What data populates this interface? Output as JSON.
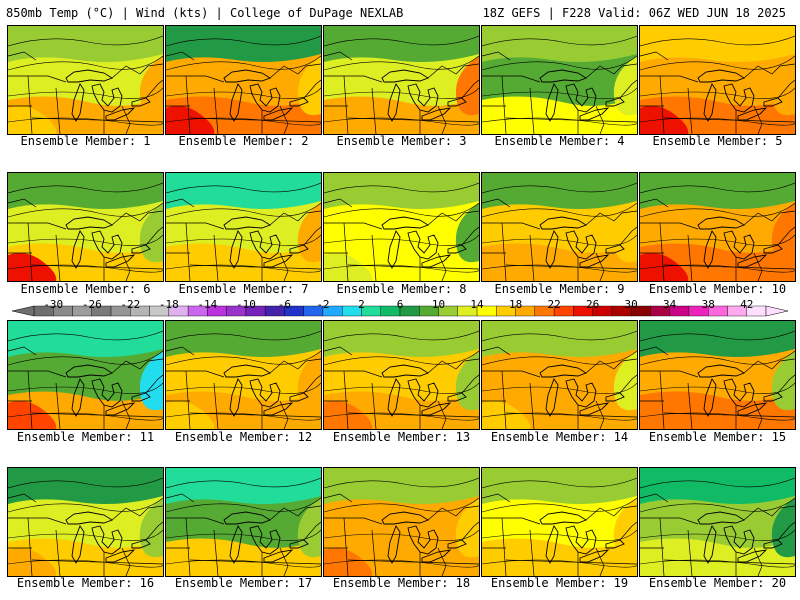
{
  "header": {
    "title_left": "850mb Temp (°C) | Wind (kts) | College of DuPage NEXLAB",
    "title_right": "18Z GEFS | F228 Valid: 06Z WED JUN 18 2025"
  },
  "colorbar": {
    "tick_labels": [
      "-30",
      "-26",
      "-22",
      "-18",
      "-14",
      "-10",
      "-6",
      "-2",
      "2",
      "6",
      "10",
      "14",
      "18",
      "22",
      "26",
      "30",
      "34",
      "38",
      "42"
    ],
    "bins": [
      {
        "from": -32,
        "to": -30,
        "color": "#6f6f6f"
      },
      {
        "from": -30,
        "to": -28,
        "color": "#8a8a8a"
      },
      {
        "from": -28,
        "to": -26,
        "color": "#9c9c9c"
      },
      {
        "from": -26,
        "to": -24,
        "color": "#7a7a7a"
      },
      {
        "from": -24,
        "to": -22,
        "color": "#969696"
      },
      {
        "from": -22,
        "to": -20,
        "color": "#b4b4b4"
      },
      {
        "from": -20,
        "to": -18,
        "color": "#c8c8c8"
      },
      {
        "from": -18,
        "to": -16,
        "color": "#e0b0f0"
      },
      {
        "from": -16,
        "to": -14,
        "color": "#cc66ee"
      },
      {
        "from": -14,
        "to": -12,
        "color": "#bb33dd"
      },
      {
        "from": -12,
        "to": -10,
        "color": "#9933cc"
      },
      {
        "from": -10,
        "to": -8,
        "color": "#7722bb"
      },
      {
        "from": -8,
        "to": -6,
        "color": "#4422aa"
      },
      {
        "from": -6,
        "to": -4,
        "color": "#2233cc"
      },
      {
        "from": -4,
        "to": -2,
        "color": "#2266ee"
      },
      {
        "from": -2,
        "to": 0,
        "color": "#22aaff"
      },
      {
        "from": 0,
        "to": 2,
        "color": "#22ddee"
      },
      {
        "from": 2,
        "to": 4,
        "color": "#22dd99"
      },
      {
        "from": 4,
        "to": 6,
        "color": "#11bb66"
      },
      {
        "from": 6,
        "to": 8,
        "color": "#229944"
      },
      {
        "from": 8,
        "to": 10,
        "color": "#55aa33"
      },
      {
        "from": 10,
        "to": 12,
        "color": "#99cc33"
      },
      {
        "from": 12,
        "to": 14,
        "color": "#ddee22"
      },
      {
        "from": 14,
        "to": 16,
        "color": "#ffff00"
      },
      {
        "from": 16,
        "to": 18,
        "color": "#ffcc00"
      },
      {
        "from": 18,
        "to": 20,
        "color": "#ffaa00"
      },
      {
        "from": 20,
        "to": 22,
        "color": "#ff7700"
      },
      {
        "from": 22,
        "to": 24,
        "color": "#ff4400"
      },
      {
        "from": 24,
        "to": 26,
        "color": "#ee1100"
      },
      {
        "from": 26,
        "to": 28,
        "color": "#cc0000"
      },
      {
        "from": 28,
        "to": 30,
        "color": "#aa0000"
      },
      {
        "from": 30,
        "to": 32,
        "color": "#880000"
      },
      {
        "from": 32,
        "to": 34,
        "color": "#aa0044"
      },
      {
        "from": 34,
        "to": 36,
        "color": "#cc0088"
      },
      {
        "from": 36,
        "to": 38,
        "color": "#ee22bb"
      },
      {
        "from": 38,
        "to": 40,
        "color": "#ff66dd"
      },
      {
        "from": 40,
        "to": 42,
        "color": "#ffaaee"
      },
      {
        "from": 42,
        "to": 44,
        "color": "#ffddff"
      }
    ]
  },
  "panels": [
    {
      "caption": "Ensemble Member: 1",
      "colors": {
        "north": "#99cc33",
        "middle": "#ddee22",
        "south": "#ffaa00",
        "southwest": "#ffcc00",
        "east": "#ffaa00"
      }
    },
    {
      "caption": "Ensemble Member: 2",
      "colors": {
        "north": "#229944",
        "middle": "#ffaa00",
        "south": "#ff7700",
        "southwest": "#ee1100",
        "east": "#ffcc00"
      }
    },
    {
      "caption": "Ensemble Member: 3",
      "colors": {
        "north": "#55aa33",
        "middle": "#ddee22",
        "south": "#ffaa00",
        "southwest": "#ffaa00",
        "east": "#ff7700"
      }
    },
    {
      "caption": "Ensemble Member: 4",
      "colors": {
        "north": "#99cc33",
        "middle": "#55aa33",
        "south": "#ffff00",
        "southwest": "#ffff00",
        "east": "#ddee22"
      }
    },
    {
      "caption": "Ensemble Member: 5",
      "colors": {
        "north": "#ffcc00",
        "middle": "#ffaa00",
        "south": "#ff7700",
        "southwest": "#ee1100",
        "east": "#ffaa00"
      }
    },
    {
      "caption": "Ensemble Member: 6",
      "colors": {
        "north": "#55aa33",
        "middle": "#ddee22",
        "south": "#ffcc00",
        "southwest": "#ee1100",
        "east": "#99cc33"
      }
    },
    {
      "caption": "Ensemble Member: 7",
      "colors": {
        "north": "#22dd99",
        "middle": "#ddee22",
        "south": "#ffcc00",
        "southwest": "#ffcc00",
        "east": "#ffaa00"
      }
    },
    {
      "caption": "Ensemble Member: 8",
      "colors": {
        "north": "#99cc33",
        "middle": "#ffff00",
        "south": "#ffff00",
        "southwest": "#ddee22",
        "east": "#55aa33"
      }
    },
    {
      "caption": "Ensemble Member: 9",
      "colors": {
        "north": "#55aa33",
        "middle": "#ffcc00",
        "south": "#ffaa00",
        "southwest": "#ffaa00",
        "east": "#ffcc00"
      }
    },
    {
      "caption": "Ensemble Member: 10",
      "colors": {
        "north": "#55aa33",
        "middle": "#ffaa00",
        "south": "#ff7700",
        "southwest": "#ee1100",
        "east": "#ff7700"
      }
    },
    {
      "caption": "Ensemble Member: 11",
      "colors": {
        "north": "#22dd99",
        "middle": "#55aa33",
        "south": "#ffaa00",
        "southwest": "#ff4400",
        "east": "#22ddee"
      }
    },
    {
      "caption": "Ensemble Member: 12",
      "colors": {
        "north": "#55aa33",
        "middle": "#ffcc00",
        "south": "#ffaa00",
        "southwest": "#ffcc00",
        "east": "#ffaa00"
      }
    },
    {
      "caption": "Ensemble Member: 13",
      "colors": {
        "north": "#99cc33",
        "middle": "#ffcc00",
        "south": "#ffaa00",
        "southwest": "#ff7700",
        "east": "#99cc33"
      }
    },
    {
      "caption": "Ensemble Member: 14",
      "colors": {
        "north": "#99cc33",
        "middle": "#ffaa00",
        "south": "#ffaa00",
        "southwest": "#ffcc00",
        "east": "#ddee22"
      }
    },
    {
      "caption": "Ensemble Member: 15",
      "colors": {
        "north": "#229944",
        "middle": "#ffaa00",
        "south": "#ff7700",
        "southwest": "#ff7700",
        "east": "#99cc33"
      }
    },
    {
      "caption": "Ensemble Member: 16",
      "colors": {
        "north": "#229944",
        "middle": "#ddee22",
        "south": "#ffcc00",
        "southwest": "#ffaa00",
        "east": "#99cc33"
      }
    },
    {
      "caption": "Ensemble Member: 17",
      "colors": {
        "north": "#22dd99",
        "middle": "#55aa33",
        "south": "#ffcc00",
        "southwest": "#ffcc00",
        "east": "#99cc33"
      }
    },
    {
      "caption": "Ensemble Member: 18",
      "colors": {
        "north": "#99cc33",
        "middle": "#ffaa00",
        "south": "#ffaa00",
        "southwest": "#ff7700",
        "east": "#ffcc00"
      }
    },
    {
      "caption": "Ensemble Member: 19",
      "colors": {
        "north": "#99cc33",
        "middle": "#ffff00",
        "south": "#ffcc00",
        "southwest": "#ffcc00",
        "east": "#ffcc00"
      }
    },
    {
      "caption": "Ensemble Member: 20",
      "colors": {
        "north": "#11bb66",
        "middle": "#99cc33",
        "south": "#ddee22",
        "southwest": "#ddee22",
        "east": "#229944"
      }
    }
  ]
}
